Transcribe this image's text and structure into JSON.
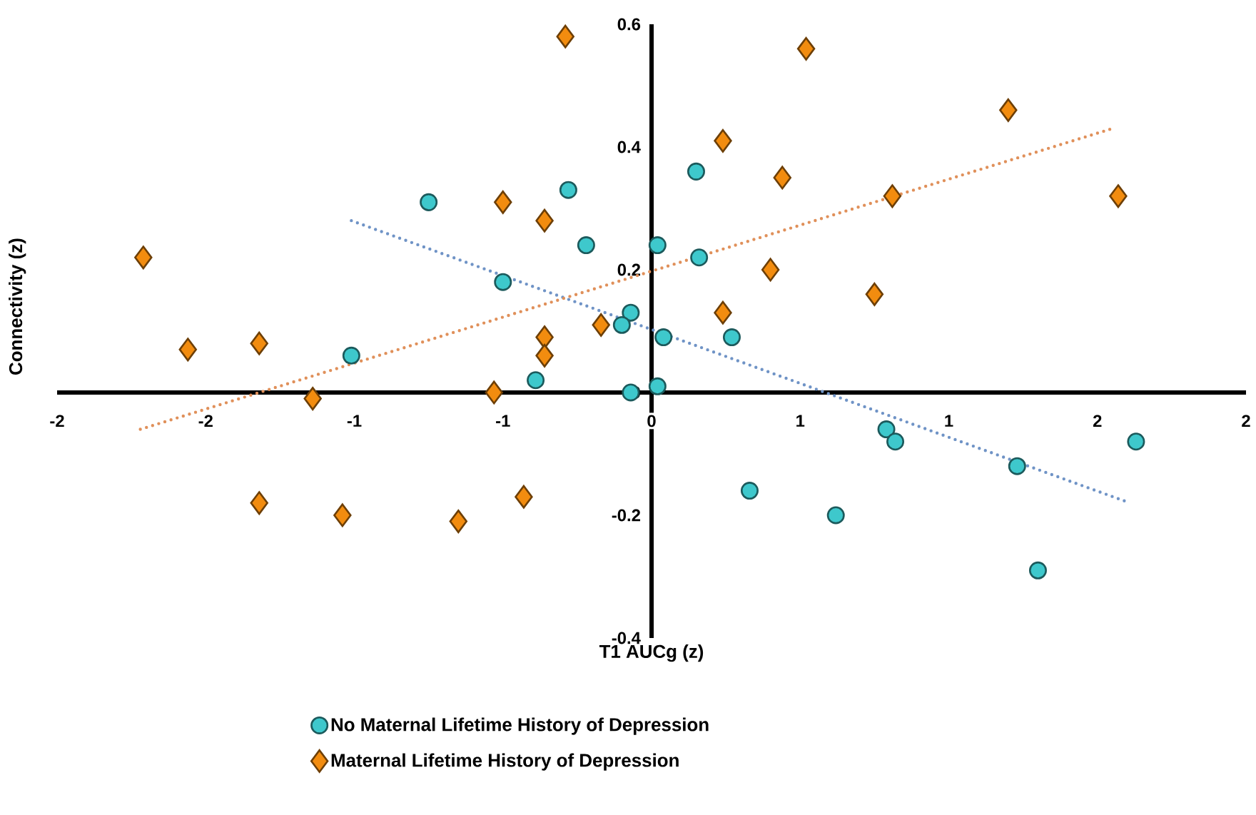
{
  "chart_data": {
    "type": "scatter",
    "xlabel": "T1 AUCg (z)",
    "ylabel": "Connectivity (z)",
    "xlim": [
      -2,
      2
    ],
    "ylim": [
      -0.4,
      0.6
    ],
    "xticks": [
      {
        "value": -2,
        "label": "-2"
      },
      {
        "value": -1.5,
        "label": "-2"
      },
      {
        "value": -1,
        "label": "-1"
      },
      {
        "value": -0.5,
        "label": "-1"
      },
      {
        "value": 0,
        "label": "0"
      },
      {
        "value": 0.5,
        "label": "1"
      },
      {
        "value": 1,
        "label": "1"
      },
      {
        "value": 1.5,
        "label": "2"
      },
      {
        "value": 2,
        "label": "2"
      }
    ],
    "yticks": [
      -0.4,
      -0.2,
      0,
      0.2,
      0.4,
      0.6
    ],
    "legend": "bottom",
    "series": [
      {
        "name": "No Maternal Lifetime History of Depression",
        "type": "scatter",
        "marker": "circle",
        "color": "#3ec8cc",
        "x": [
          -0.75,
          -0.28,
          -0.22,
          -0.5,
          -0.07,
          -0.1,
          -1.01,
          -0.39,
          -0.07,
          0.02,
          0.15,
          0.16,
          0.04,
          0.27,
          0.02,
          0.33,
          0.62,
          0.79,
          0.82,
          1.23,
          1.3,
          1.63
        ],
        "values": [
          0.31,
          0.33,
          0.24,
          0.18,
          0.13,
          0.11,
          0.06,
          0.02,
          0.0,
          0.24,
          0.36,
          0.22,
          0.09,
          0.09,
          0.01,
          -0.16,
          -0.2,
          -0.06,
          -0.08,
          -0.12,
          -0.29,
          -0.08
        ]
      },
      {
        "name": "Maternal Lifetime History of Depression",
        "type": "scatter",
        "marker": "diamond",
        "color": "#f28c0f",
        "x": [
          -0.29,
          -0.5,
          -0.36,
          -1.71,
          -1.56,
          -1.32,
          -0.17,
          -0.36,
          -0.36,
          -1.14,
          -0.53,
          -1.32,
          -1.04,
          -0.65,
          -0.43,
          0.52,
          1.2,
          0.24,
          0.44,
          0.81,
          1.57,
          0.4,
          0.75,
          0.24
        ],
        "values": [
          0.58,
          0.31,
          0.28,
          0.22,
          0.07,
          0.08,
          0.11,
          0.09,
          0.06,
          -0.01,
          0.0,
          -0.18,
          -0.2,
          -0.21,
          -0.17,
          0.56,
          0.46,
          0.41,
          0.35,
          0.32,
          0.32,
          0.2,
          0.16,
          0.13
        ]
      },
      {
        "type": "line",
        "marker": "none",
        "line_style": "dotted",
        "color": "#6f93c6",
        "x": [
          -1.01,
          1.61
        ],
        "values": [
          0.28,
          -0.18
        ]
      },
      {
        "type": "line",
        "marker": "none",
        "line_style": "dotted",
        "color": "#e0905a",
        "x": [
          -1.72,
          1.55
        ],
        "values": [
          -0.06,
          0.43
        ]
      }
    ]
  }
}
